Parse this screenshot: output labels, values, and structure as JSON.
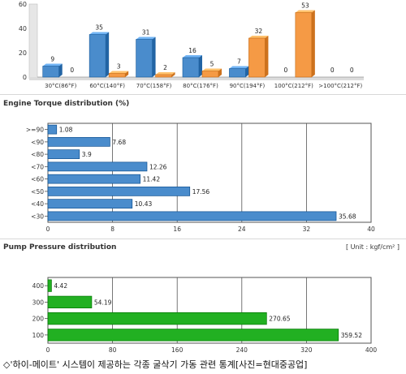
{
  "chart_data": [
    {
      "type": "bar",
      "title": "",
      "categories": [
        "30°C(86°F)",
        "60°C(140°F)",
        "70°C(158°F)",
        "80°C(176°F)",
        "90°C(194°F)",
        "100°C(212°F)",
        ">100°C(212°F)"
      ],
      "series": [
        {
          "name": "",
          "values": [
            9,
            35,
            31,
            16,
            7,
            0,
            0
          ],
          "color": "#4a8ccc"
        },
        {
          "name": "",
          "values": [
            0,
            3,
            2,
            5,
            32,
            53,
            0
          ],
          "color": "#f59a45"
        }
      ],
      "ylim": [
        0,
        60
      ],
      "yticks": [
        0,
        20,
        40,
        60
      ],
      "grid": false
    },
    {
      "type": "bar",
      "orientation": "horizontal",
      "title": "Engine Torque distribution (%)",
      "categories": [
        ">=90",
        "<90",
        "<80",
        "<70",
        "<60",
        "<50",
        "<40",
        "<30"
      ],
      "values": [
        1.08,
        7.68,
        3.9,
        12.26,
        11.42,
        17.56,
        10.43,
        35.68
      ],
      "value_labels": [
        "1.08",
        "7.68",
        "3.9",
        "12.26",
        "11.42",
        "17.56",
        "10.43",
        "35.68"
      ],
      "xlim": [
        0,
        40
      ],
      "xticks": [
        0,
        8,
        16,
        24,
        32,
        40
      ],
      "color": "#4a8ccc",
      "grid": true
    },
    {
      "type": "bar",
      "orientation": "horizontal",
      "title": "Pump Pressure distribution",
      "unit_note": "[ Unit : kgf/cm² ]",
      "categories": [
        "400",
        "300",
        "200",
        "100"
      ],
      "values": [
        4.42,
        54.19,
        270.65,
        359.52
      ],
      "value_labels": [
        "4.42",
        "54.19",
        "270.65",
        "359.52"
      ],
      "xlim": [
        0,
        400
      ],
      "xticks": [
        0,
        80,
        160,
        240,
        320,
        400
      ],
      "color": "#22b022",
      "grid": true
    }
  ],
  "caption": "◇'하이-메이트' 시스템이 제공하는 각종 굴삭기 가동 관련 통계[사진=현대중공업]"
}
